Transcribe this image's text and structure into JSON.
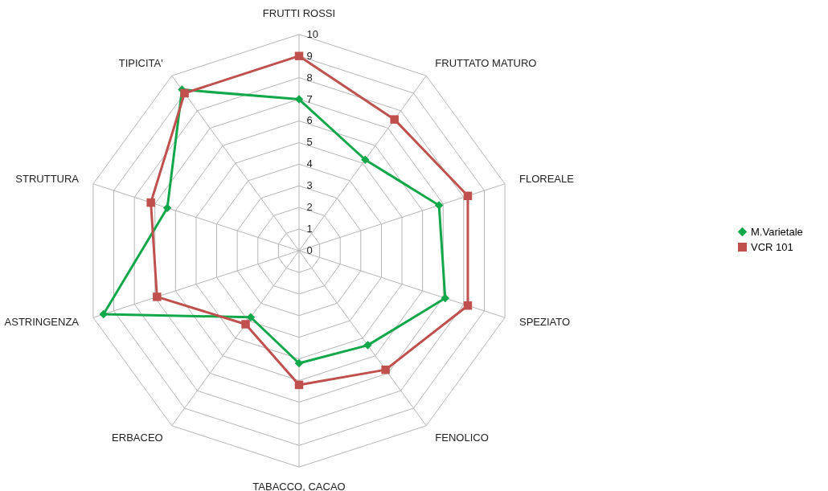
{
  "chart_data": {
    "type": "radar",
    "categories": [
      "FRUTTI ROSSI",
      "FRUTTATO MATURO",
      "FLOREALE",
      "SPEZIATO",
      "FENOLICO",
      "TABACCO, CACAO",
      "ERBACEO",
      "ASTRINGENZA",
      "STRUTTURA",
      "TIPICITA'"
    ],
    "series": [
      {
        "name": "M.Varietale",
        "color": "#12a84a",
        "marker": "diamond",
        "values": [
          7,
          5.2,
          6.8,
          7.1,
          5.4,
          5.2,
          3.8,
          9.5,
          6.4,
          9.2
        ]
      },
      {
        "name": "VCR 101",
        "color": "#c0504d",
        "marker": "square",
        "values": [
          9,
          7.5,
          8.2,
          8.2,
          6.8,
          6.2,
          4.2,
          6.9,
          7.2,
          9
        ]
      }
    ],
    "ylim": [
      0,
      10
    ],
    "yticks": [
      0,
      1,
      2,
      3,
      4,
      5,
      6,
      7,
      8,
      9,
      10
    ],
    "grid": true,
    "legend": "right"
  }
}
